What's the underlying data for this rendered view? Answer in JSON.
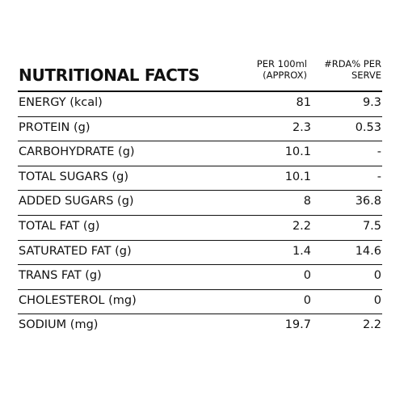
{
  "table": {
    "title": "NUTRITIONAL FACTS",
    "col1_line1": "PER 100ml",
    "col1_line2": "(APPROX)",
    "col2_line1": "#RDA% PER",
    "col2_line2": "SERVE",
    "rows": [
      {
        "label": "ENERGY (kcal)",
        "per100ml": "81",
        "rda": "9.3"
      },
      {
        "label": "PROTEIN (g)",
        "per100ml": "2.3",
        "rda": "0.53"
      },
      {
        "label": "CARBOHYDRATE (g)",
        "per100ml": "10.1",
        "rda": "-"
      },
      {
        "label": "TOTAL SUGARS (g)",
        "per100ml": "10.1",
        "rda": "-"
      },
      {
        "label": "ADDED SUGARS (g)",
        "per100ml": "8",
        "rda": "36.8"
      },
      {
        "label": "TOTAL FAT (g)",
        "per100ml": "2.2",
        "rda": "7.5"
      },
      {
        "label": "SATURATED FAT (g)",
        "per100ml": "1.4",
        "rda": "14.6"
      },
      {
        "label": "TRANS FAT (g)",
        "per100ml": "0",
        "rda": "0"
      },
      {
        "label": "CHOLESTEROL (mg)",
        "per100ml": "0",
        "rda": "0"
      },
      {
        "label": "SODIUM (mg)",
        "per100ml": "19.7",
        "rda": "2.2"
      }
    ]
  }
}
